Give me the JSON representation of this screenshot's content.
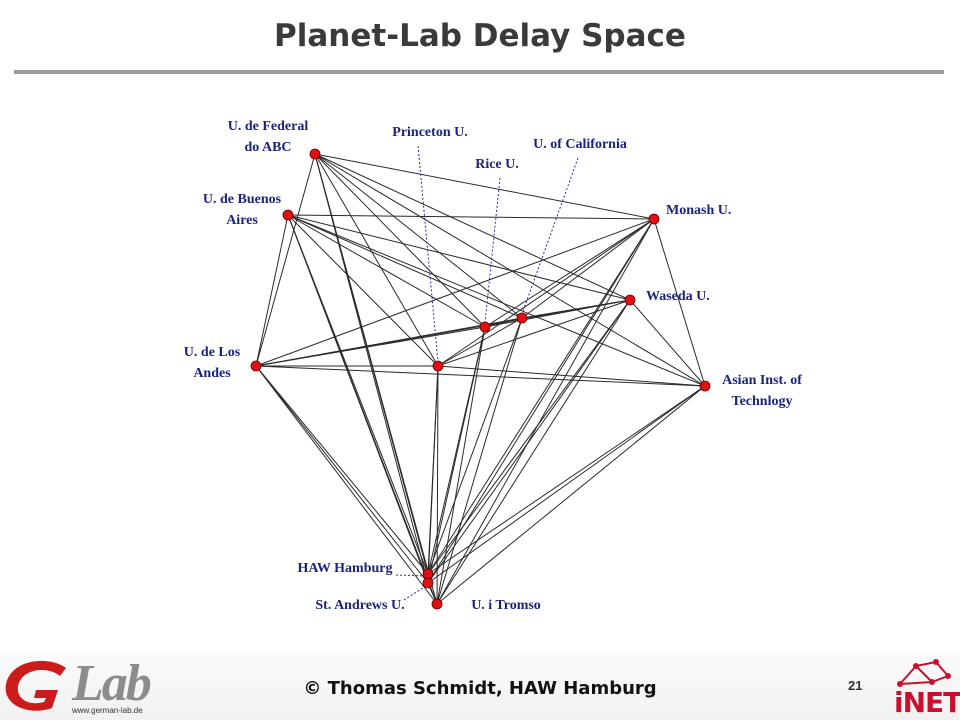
{
  "slide": {
    "title": "Planet-Lab Delay Space",
    "footer": "© Thomas Schmidt, HAW Hamburg",
    "page_number": "21"
  },
  "logos": {
    "left_wordmark": "Lab",
    "left_url": "www.german-lab.de",
    "right_wordmark": "iNET"
  },
  "colors": {
    "node": "#e01010",
    "edge": "#2a2a2a",
    "label": "#1a237e",
    "leader": "#2a2aa0",
    "rule": "#9a9a9a"
  },
  "nodes": [
    {
      "id": "abc",
      "label": "U. de Federal\ndo ABC"
    },
    {
      "id": "buenos",
      "label": "U. de Buenos\nAires"
    },
    {
      "id": "andes",
      "label": "U. de Los\nAndes"
    },
    {
      "id": "princeton",
      "label": "Princeton U."
    },
    {
      "id": "rice",
      "label": "Rice U."
    },
    {
      "id": "california",
      "label": "U. of California"
    },
    {
      "id": "monash",
      "label": "Monash U."
    },
    {
      "id": "waseda",
      "label": "Waseda U."
    },
    {
      "id": "asian",
      "label": "Asian Inst. of\nTechnlogy"
    },
    {
      "id": "hamburg",
      "label": "HAW Hamburg"
    },
    {
      "id": "standrews",
      "label": "St. Andrews U."
    },
    {
      "id": "tromso",
      "label": "U. i Tromso"
    }
  ]
}
